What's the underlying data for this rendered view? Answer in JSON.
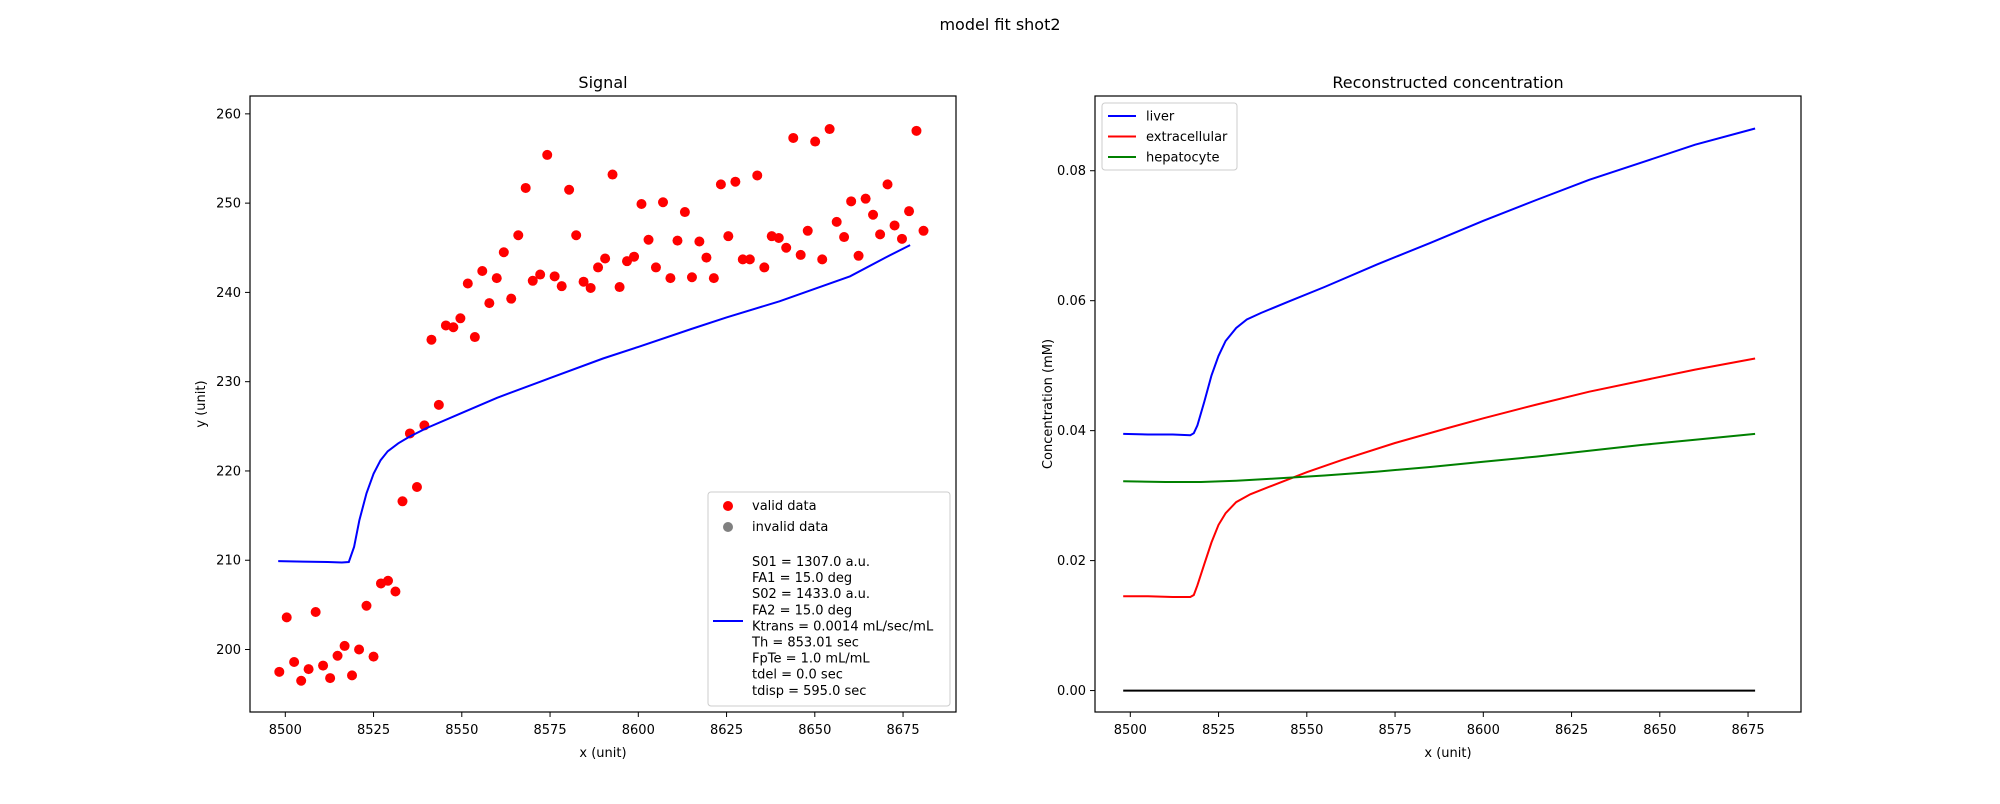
{
  "figure": {
    "suptitle": "model fit shot2"
  },
  "chart_data": [
    {
      "type": "scatter",
      "title": "Signal",
      "xlabel": "x (unit)",
      "ylabel": "y (unit)",
      "xlim": [
        8490,
        8690
      ],
      "ylim": [
        193,
        262
      ],
      "xticks": [
        8500,
        8525,
        8550,
        8575,
        8600,
        8625,
        8650,
        8675
      ],
      "yticks": [
        200,
        210,
        220,
        230,
        240,
        250,
        260
      ],
      "grid": false,
      "legend_position": "lower right",
      "series": [
        {
          "name": "valid data",
          "kind": "points",
          "color": "#ff0000",
          "points": [
            [
              8498.3,
              197.5
            ],
            [
              8500.4,
              203.6
            ],
            [
              8502.5,
              198.6
            ],
            [
              8504.5,
              196.5
            ],
            [
              8506.6,
              197.8
            ],
            [
              8508.6,
              204.2
            ],
            [
              8510.7,
              198.2
            ],
            [
              8512.7,
              196.8
            ],
            [
              8514.8,
              199.3
            ],
            [
              8516.8,
              200.4
            ],
            [
              8518.9,
              197.1
            ],
            [
              8520.9,
              200.0
            ],
            [
              8523.0,
              204.9
            ],
            [
              8525.0,
              199.2
            ],
            [
              8527.1,
              207.4
            ],
            [
              8529.1,
              207.7
            ],
            [
              8531.2,
              206.5
            ],
            [
              8533.2,
              216.6
            ],
            [
              8535.3,
              224.2
            ],
            [
              8537.3,
              218.2
            ],
            [
              8539.4,
              225.1
            ],
            [
              8541.4,
              234.7
            ],
            [
              8543.5,
              227.4
            ],
            [
              8545.5,
              236.3
            ],
            [
              8547.6,
              236.1
            ],
            [
              8549.6,
              237.1
            ],
            [
              8551.7,
              241.0
            ],
            [
              8553.7,
              235.0
            ],
            [
              8555.8,
              242.4
            ],
            [
              8557.8,
              238.8
            ],
            [
              8559.9,
              241.6
            ],
            [
              8561.9,
              244.5
            ],
            [
              8564.0,
              239.3
            ],
            [
              8566.0,
              246.4
            ],
            [
              8568.1,
              251.7
            ],
            [
              8570.1,
              241.3
            ],
            [
              8572.2,
              242.0
            ],
            [
              8574.2,
              255.4
            ],
            [
              8576.3,
              241.8
            ],
            [
              8578.3,
              240.7
            ],
            [
              8580.4,
              251.5
            ],
            [
              8582.4,
              246.4
            ],
            [
              8584.5,
              241.2
            ],
            [
              8586.5,
              240.5
            ],
            [
              8588.6,
              242.8
            ],
            [
              8590.6,
              243.8
            ],
            [
              8592.7,
              253.2
            ],
            [
              8594.7,
              240.6
            ],
            [
              8596.8,
              243.5
            ],
            [
              8598.8,
              244.0
            ],
            [
              8600.9,
              249.9
            ],
            [
              8602.9,
              245.9
            ],
            [
              8605.0,
              242.8
            ],
            [
              8607.0,
              250.1
            ],
            [
              8609.1,
              241.6
            ],
            [
              8611.1,
              245.8
            ],
            [
              8613.2,
              249.0
            ],
            [
              8615.2,
              241.7
            ],
            [
              8617.3,
              245.7
            ],
            [
              8619.3,
              243.9
            ],
            [
              8621.4,
              241.6
            ],
            [
              8623.4,
              252.1
            ],
            [
              8625.5,
              246.3
            ],
            [
              8627.5,
              252.4
            ],
            [
              8629.6,
              243.7
            ],
            [
              8631.6,
              243.7
            ],
            [
              8633.7,
              253.1
            ],
            [
              8635.7,
              242.8
            ],
            [
              8637.8,
              246.3
            ],
            [
              8639.8,
              246.1
            ],
            [
              8641.9,
              245.0
            ],
            [
              8643.9,
              257.3
            ],
            [
              8646.0,
              244.2
            ],
            [
              8648.0,
              246.9
            ],
            [
              8650.1,
              256.9
            ],
            [
              8652.1,
              243.7
            ],
            [
              8654.2,
              258.3
            ],
            [
              8656.2,
              247.9
            ],
            [
              8658.3,
              246.2
            ],
            [
              8660.3,
              250.2
            ],
            [
              8662.4,
              244.1
            ],
            [
              8664.4,
              250.5
            ],
            [
              8666.5,
              248.7
            ],
            [
              8668.5,
              246.5
            ],
            [
              8670.6,
              252.1
            ],
            [
              8672.6,
              247.5
            ],
            [
              8674.7,
              246.0
            ],
            [
              8676.7,
              249.1
            ],
            [
              8678.8,
              258.1
            ],
            [
              8680.8,
              246.9
            ]
          ]
        },
        {
          "name": "invalid data",
          "kind": "points",
          "color": "#808080",
          "points": []
        },
        {
          "name": "S01 = 1307.0 a.u.\nFA1 = 15.0 deg\nS02 = 1433.0 a.u.\nFA2 = 15.0 deg\nKtrans = 0.0014 mL/sec/mL\nTh = 853.01 sec\nFpTe = 1.0 mL/mL\ntdel = 0.0 sec\ntdisp = 595.0 sec",
          "kind": "line",
          "color": "#0000ff",
          "points": [
            [
              8498,
              209.9
            ],
            [
              8505,
              209.85
            ],
            [
              8512,
              209.8
            ],
            [
              8516,
              209.75
            ],
            [
              8518,
              209.8
            ],
            [
              8519.5,
              211.5
            ],
            [
              8521,
              214.5
            ],
            [
              8523,
              217.5
            ],
            [
              8525,
              219.7
            ],
            [
              8527,
              221.2
            ],
            [
              8529,
              222.2
            ],
            [
              8532,
              223.1
            ],
            [
              8535,
              223.8
            ],
            [
              8540,
              224.8
            ],
            [
              8550,
              226.5
            ],
            [
              8560,
              228.2
            ],
            [
              8575,
              230.4
            ],
            [
              8590,
              232.6
            ],
            [
              8600,
              233.9
            ],
            [
              8615,
              235.9
            ],
            [
              8625,
              237.2
            ],
            [
              8640,
              239.0
            ],
            [
              8650,
              240.4
            ],
            [
              8660,
              241.8
            ],
            [
              8670,
              243.9
            ],
            [
              8677,
              245.3
            ]
          ]
        }
      ]
    },
    {
      "type": "line",
      "title": "Reconstructed concentration",
      "xlabel": "x (unit)",
      "ylabel": "Concentration (mM)",
      "xlim": [
        8490,
        8690
      ],
      "ylim": [
        -0.0033,
        0.0915
      ],
      "xticks": [
        8500,
        8525,
        8550,
        8575,
        8600,
        8625,
        8650,
        8675
      ],
      "yticks": [
        0.0,
        0.02,
        0.04,
        0.06,
        0.08
      ],
      "ytick_labels": [
        "0.00",
        "0.02",
        "0.04",
        "0.06",
        "0.08"
      ],
      "grid": false,
      "legend_position": "upper left",
      "series": [
        {
          "name": "liver",
          "color": "#0000ff",
          "points": [
            [
              8498,
              0.0395
            ],
            [
              8505,
              0.0394
            ],
            [
              8512,
              0.0394
            ],
            [
              8517,
              0.0393
            ],
            [
              8518,
              0.0396
            ],
            [
              8519,
              0.0408
            ],
            [
              8521,
              0.0445
            ],
            [
              8523,
              0.0485
            ],
            [
              8525,
              0.0515
            ],
            [
              8527,
              0.0538
            ],
            [
              8530,
              0.0558
            ],
            [
              8533,
              0.0571
            ],
            [
              8537,
              0.0581
            ],
            [
              8545,
              0.0599
            ],
            [
              8555,
              0.0621
            ],
            [
              8570,
              0.0656
            ],
            [
              8585,
              0.0689
            ],
            [
              8600,
              0.0723
            ],
            [
              8615,
              0.0755
            ],
            [
              8630,
              0.0786
            ],
            [
              8645,
              0.0813
            ],
            [
              8660,
              0.084
            ],
            [
              8677,
              0.0865
            ]
          ]
        },
        {
          "name": "extracellular",
          "color": "#ff0000",
          "points": [
            [
              8498,
              0.0145
            ],
            [
              8505,
              0.0145
            ],
            [
              8512,
              0.0144
            ],
            [
              8517,
              0.0144
            ],
            [
              8518,
              0.0147
            ],
            [
              8519,
              0.0162
            ],
            [
              8521,
              0.0195
            ],
            [
              8523,
              0.0228
            ],
            [
              8525,
              0.0255
            ],
            [
              8527,
              0.0273
            ],
            [
              8530,
              0.029
            ],
            [
              8534,
              0.0302
            ],
            [
              8540,
              0.0315
            ],
            [
              8550,
              0.0336
            ],
            [
              8560,
              0.0355
            ],
            [
              8575,
              0.0381
            ],
            [
              8590,
              0.0404
            ],
            [
              8600,
              0.0419
            ],
            [
              8615,
              0.044
            ],
            [
              8630,
              0.046
            ],
            [
              8645,
              0.0477
            ],
            [
              8660,
              0.0494
            ],
            [
              8677,
              0.0511
            ]
          ]
        },
        {
          "name": "hepatocyte",
          "color": "#008000",
          "points": [
            [
              8498,
              0.0322
            ],
            [
              8510,
              0.0321
            ],
            [
              8520,
              0.0321
            ],
            [
              8530,
              0.0323
            ],
            [
              8540,
              0.0326
            ],
            [
              8555,
              0.0331
            ],
            [
              8570,
              0.0337
            ],
            [
              8585,
              0.0344
            ],
            [
              8600,
              0.0352
            ],
            [
              8615,
              0.036
            ],
            [
              8630,
              0.0369
            ],
            [
              8645,
              0.0378
            ],
            [
              8660,
              0.0386
            ],
            [
              8677,
              0.0395
            ]
          ]
        },
        {
          "name": "",
          "color": "#000000",
          "points": [
            [
              8498,
              0.0
            ],
            [
              8677,
              0.0
            ]
          ]
        }
      ]
    }
  ]
}
